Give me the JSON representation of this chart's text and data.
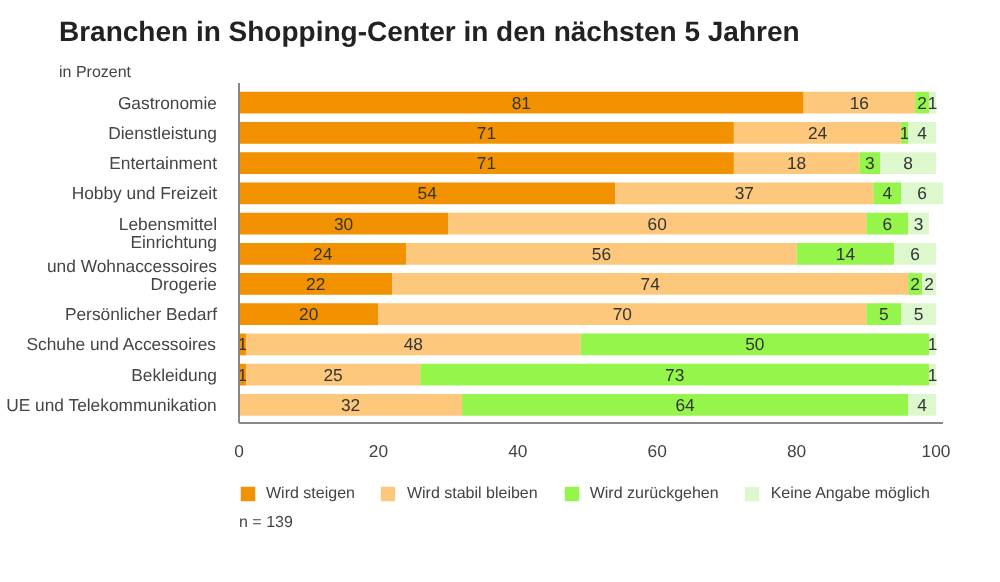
{
  "chart_data": {
    "type": "bar",
    "orientation": "horizontal",
    "stacked": true,
    "title": "Branchen in Shopping-Center in den nächsten 5 Jahren",
    "categories": [
      "Gastronomie",
      "Dienstleistung",
      "Entertainment",
      "Hobby und Freizeit",
      "Lebensmittel",
      "Einrichtung\nund Wohnaccessoires",
      "Drogerie",
      "Persönlicher Bedarf",
      "Schuhe und Accessoires",
      "Bekleidung",
      "UE und Telekommunikation"
    ],
    "series": [
      {
        "name": "Wird steigen",
        "color": "#f39200",
        "values": [
          81,
          71,
          71,
          54,
          30,
          24,
          22,
          20,
          1,
          1,
          0
        ],
        "value_labels": [
          "81",
          "71",
          "71",
          "54",
          "30",
          "24",
          "22",
          "20",
          "1",
          "1",
          null
        ]
      },
      {
        "name": "Wird stabil bleiben",
        "color": "#fdc87c",
        "values": [
          16,
          24,
          18,
          37,
          60,
          56,
          74,
          70,
          48,
          25,
          32
        ],
        "value_labels": [
          "16",
          "24",
          "18",
          "37",
          "60",
          "56",
          "74",
          "70",
          "48",
          "25",
          "32"
        ]
      },
      {
        "name": "Wird zurückgehen",
        "color": "#96f54a",
        "values": [
          2,
          1,
          3,
          4,
          6,
          14,
          2,
          5,
          50,
          73,
          64
        ],
        "value_labels": [
          "2",
          "1",
          "3",
          "4",
          "6",
          "14",
          "2",
          "5",
          "50",
          "73",
          "64"
        ]
      },
      {
        "name": "Keine Angabe möglich",
        "color": "#dcf8cc",
        "values": [
          1,
          4,
          8,
          6,
          3,
          6,
          2,
          5,
          1,
          1,
          4
        ],
        "value_labels": [
          "1",
          "4",
          "8",
          "6",
          "3",
          "6",
          "2",
          "5",
          "1",
          "1",
          "4"
        ]
      }
    ],
    "xlim": [
      0,
      101
    ],
    "xticks": [
      0,
      20,
      40,
      60,
      80,
      100
    ],
    "grid": false,
    "legend": "bottom",
    "annotations": [
      "in Prozent",
      "n = 139"
    ]
  }
}
